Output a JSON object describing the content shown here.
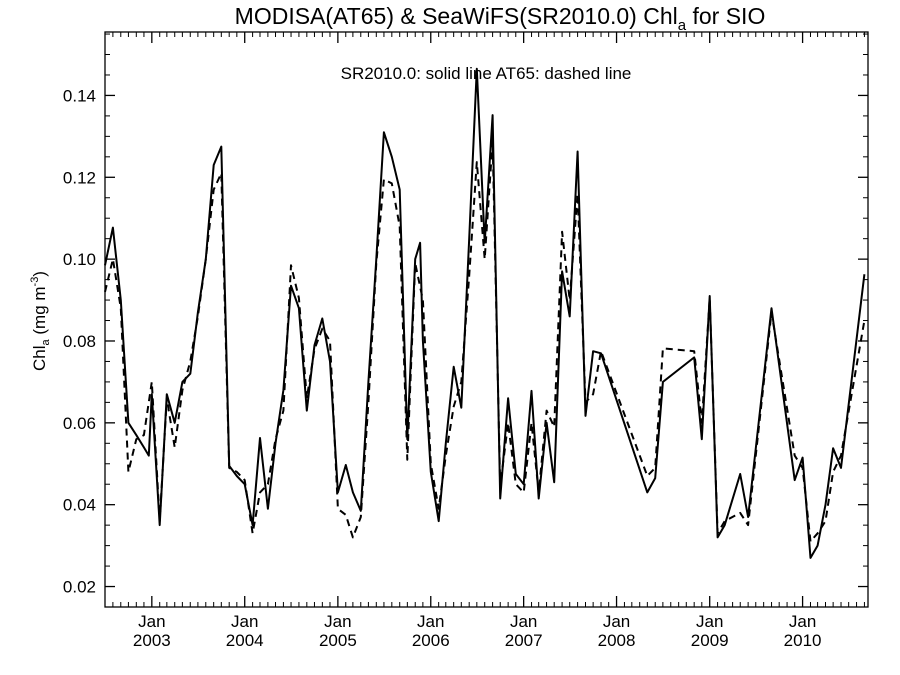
{
  "chart_data": {
    "type": "line",
    "title": {
      "main": "MODISA(AT65) & SeaWiFS(SR2010.0)  Chl",
      "subscript": "a",
      "suffix": " for SIO"
    },
    "annotation": "SR2010.0: solid line   AT65: dashed line",
    "ylabel": {
      "main": "Chl",
      "subscript": "a",
      "unit": " (mg m",
      "superscript": "-3",
      "close": ")"
    },
    "x_axis": {
      "type": "date",
      "range": [
        "2002-07-01",
        "2010-09-15"
      ],
      "tick_labels": [
        {
          "date": "2003-01-01",
          "month": "Jan",
          "year": "2003"
        },
        {
          "date": "2004-01-01",
          "month": "Jan",
          "year": "2004"
        },
        {
          "date": "2005-01-01",
          "month": "Jan",
          "year": "2005"
        },
        {
          "date": "2006-01-01",
          "month": "Jan",
          "year": "2006"
        },
        {
          "date": "2007-01-01",
          "month": "Jan",
          "year": "2007"
        },
        {
          "date": "2008-01-01",
          "month": "Jan",
          "year": "2008"
        },
        {
          "date": "2009-01-01",
          "month": "Jan",
          "year": "2009"
        },
        {
          "date": "2010-01-01",
          "month": "Jan",
          "year": "2010"
        }
      ]
    },
    "y_axis": {
      "range": [
        0.015,
        0.1555
      ],
      "tick_labels": [
        "0.02",
        "0.04",
        "0.06",
        "0.08",
        "0.10",
        "0.12",
        "0.14"
      ],
      "tick_values": [
        0.02,
        0.04,
        0.06,
        0.08,
        0.1,
        0.12,
        0.14
      ]
    },
    "series": [
      {
        "name": "SR2010.0",
        "style": "solid",
        "color": "#000000",
        "points": [
          [
            "2002-07-01",
            0.0985
          ],
          [
            "2002-08-01",
            0.1077
          ],
          [
            "2002-09-01",
            0.09
          ],
          [
            "2002-10-01",
            0.06
          ],
          [
            "2002-11-01",
            0.057
          ],
          [
            "2002-12-01",
            0.054
          ],
          [
            "2002-12-20",
            0.052
          ],
          [
            "2003-01-01",
            0.067
          ],
          [
            "2003-02-01",
            0.035
          ],
          [
            "2003-03-01",
            0.067
          ],
          [
            "2003-04-01",
            0.06
          ],
          [
            "2003-05-01",
            0.07
          ],
          [
            "2003-06-01",
            0.072
          ],
          [
            "2003-07-01",
            0.087
          ],
          [
            "2003-08-01",
            0.1
          ],
          [
            "2003-09-01",
            0.123
          ],
          [
            "2003-10-01",
            0.1275
          ],
          [
            "2003-11-01",
            0.0495
          ],
          [
            "2003-12-01",
            0.047
          ],
          [
            "2004-01-01",
            0.045
          ],
          [
            "2004-02-01",
            0.035
          ],
          [
            "2004-03-01",
            0.0563
          ],
          [
            "2004-04-01",
            0.039
          ],
          [
            "2004-05-01",
            0.055
          ],
          [
            "2004-06-01",
            0.068
          ],
          [
            "2004-07-01",
            0.0935
          ],
          [
            "2004-08-01",
            0.088
          ],
          [
            "2004-09-01",
            0.063
          ],
          [
            "2004-10-01",
            0.079
          ],
          [
            "2004-11-01",
            0.0855
          ],
          [
            "2004-12-01",
            0.075
          ],
          [
            "2005-01-01",
            0.043
          ],
          [
            "2005-02-01",
            0.0497
          ],
          [
            "2005-03-01",
            0.043
          ],
          [
            "2005-04-01",
            0.0385
          ],
          [
            "2005-05-01",
            0.07
          ],
          [
            "2005-06-01",
            0.1
          ],
          [
            "2005-07-01",
            0.131
          ],
          [
            "2005-08-01",
            0.125
          ],
          [
            "2005-09-01",
            0.117
          ],
          [
            "2005-10-01",
            0.056
          ],
          [
            "2005-11-01",
            0.1
          ],
          [
            "2005-11-20",
            0.104
          ],
          [
            "2005-12-01",
            0.08
          ],
          [
            "2006-01-01",
            0.048
          ],
          [
            "2006-02-01",
            0.036
          ],
          [
            "2006-03-01",
            0.055
          ],
          [
            "2006-04-01",
            0.0737
          ],
          [
            "2006-05-01",
            0.0637
          ],
          [
            "2006-06-01",
            0.105
          ],
          [
            "2006-07-01",
            0.1465
          ],
          [
            "2006-08-01",
            0.104
          ],
          [
            "2006-09-01",
            0.1352
          ],
          [
            "2006-10-01",
            0.0415
          ],
          [
            "2006-11-01",
            0.066
          ],
          [
            "2006-12-01",
            0.0475
          ],
          [
            "2007-01-01",
            0.045
          ],
          [
            "2007-02-01",
            0.0678
          ],
          [
            "2007-03-01",
            0.0415
          ],
          [
            "2007-04-01",
            0.06
          ],
          [
            "2007-05-01",
            0.0455
          ],
          [
            "2007-06-01",
            0.097
          ],
          [
            "2007-07-01",
            0.086
          ],
          [
            "2007-08-01",
            0.1263
          ],
          [
            "2007-09-01",
            0.0617
          ],
          [
            "2007-10-01",
            0.0775
          ],
          [
            "2007-11-01",
            0.077
          ],
          [
            "2008-05-01",
            0.043
          ],
          [
            "2008-06-01",
            0.0465
          ],
          [
            "2008-07-01",
            0.07
          ],
          [
            "2008-11-01",
            0.076
          ],
          [
            "2008-12-01",
            0.056
          ],
          [
            "2009-01-01",
            0.091
          ],
          [
            "2009-02-01",
            0.032
          ],
          [
            "2009-03-01",
            0.035
          ],
          [
            "2009-05-01",
            0.0475
          ],
          [
            "2009-06-01",
            0.037
          ],
          [
            "2009-09-01",
            0.088
          ],
          [
            "2009-12-01",
            0.046
          ],
          [
            "2010-01-01",
            0.0515
          ],
          [
            "2010-02-01",
            0.027
          ],
          [
            "2010-03-01",
            0.03
          ],
          [
            "2010-04-01",
            0.04
          ],
          [
            "2010-05-01",
            0.0538
          ],
          [
            "2010-06-01",
            0.049
          ],
          [
            "2010-09-01",
            0.0963
          ]
        ]
      },
      {
        "name": "AT65",
        "style": "dashed",
        "color": "#000000",
        "points": [
          [
            "2002-07-01",
            0.092
          ],
          [
            "2002-08-01",
            0.1
          ],
          [
            "2002-09-01",
            0.088
          ],
          [
            "2002-10-01",
            0.048
          ],
          [
            "2002-11-01",
            0.056
          ],
          [
            "2002-12-01",
            0.057
          ],
          [
            "2003-01-01",
            0.07
          ],
          [
            "2003-02-01",
            0.036
          ],
          [
            "2003-03-01",
            0.066
          ],
          [
            "2003-04-01",
            0.054
          ],
          [
            "2003-05-01",
            0.068
          ],
          [
            "2003-06-01",
            0.075
          ],
          [
            "2003-07-01",
            0.086
          ],
          [
            "2003-08-01",
            0.1
          ],
          [
            "2003-09-01",
            0.117
          ],
          [
            "2003-10-01",
            0.121
          ],
          [
            "2003-11-01",
            0.049
          ],
          [
            "2003-12-01",
            0.048
          ],
          [
            "2004-01-01",
            0.046
          ],
          [
            "2004-02-01",
            0.033
          ],
          [
            "2004-03-01",
            0.043
          ],
          [
            "2004-04-01",
            0.045
          ],
          [
            "2004-05-01",
            0.056
          ],
          [
            "2004-06-01",
            0.063
          ],
          [
            "2004-07-01",
            0.0985
          ],
          [
            "2004-08-01",
            0.0905
          ],
          [
            "2004-09-01",
            0.066
          ],
          [
            "2004-10-01",
            0.078
          ],
          [
            "2004-11-01",
            0.083
          ],
          [
            "2004-12-01",
            0.08
          ],
          [
            "2005-01-01",
            0.039
          ],
          [
            "2005-02-01",
            0.0375
          ],
          [
            "2005-03-01",
            0.032
          ],
          [
            "2005-04-01",
            0.037
          ],
          [
            "2005-05-01",
            0.065
          ],
          [
            "2005-06-01",
            0.099
          ],
          [
            "2005-07-01",
            0.1195
          ],
          [
            "2005-08-01",
            0.1185
          ],
          [
            "2005-09-01",
            0.108
          ],
          [
            "2005-10-01",
            0.051
          ],
          [
            "2005-11-01",
            0.099
          ],
          [
            "2005-12-01",
            0.09
          ],
          [
            "2006-01-01",
            0.05
          ],
          [
            "2006-02-01",
            0.039
          ],
          [
            "2006-03-01",
            0.052
          ],
          [
            "2006-04-01",
            0.064
          ],
          [
            "2006-05-01",
            0.07
          ],
          [
            "2006-06-01",
            0.096
          ],
          [
            "2006-07-01",
            0.1237
          ],
          [
            "2006-08-01",
            0.1
          ],
          [
            "2006-09-01",
            0.129
          ],
          [
            "2006-10-01",
            0.0445
          ],
          [
            "2006-11-01",
            0.06
          ],
          [
            "2006-12-01",
            0.045
          ],
          [
            "2007-01-01",
            0.043
          ],
          [
            "2007-02-01",
            0.06
          ],
          [
            "2007-03-01",
            0.043
          ],
          [
            "2007-04-01",
            0.063
          ],
          [
            "2007-05-01",
            0.059
          ],
          [
            "2007-06-01",
            0.1067
          ],
          [
            "2007-07-01",
            0.09
          ],
          [
            "2007-08-01",
            0.116
          ],
          [
            "2007-09-01",
            0.065
          ],
          [
            "2007-10-01",
            0.067
          ],
          [
            "2007-11-01",
            0.0775
          ],
          [
            "2008-05-01",
            0.047
          ],
          [
            "2008-06-01",
            0.049
          ],
          [
            "2008-07-01",
            0.0782
          ],
          [
            "2008-11-01",
            0.0775
          ],
          [
            "2008-12-01",
            0.06
          ],
          [
            "2009-01-01",
            0.0905
          ],
          [
            "2009-02-01",
            0.033
          ],
          [
            "2009-03-01",
            0.036
          ],
          [
            "2009-05-01",
            0.038
          ],
          [
            "2009-06-01",
            0.035
          ],
          [
            "2009-09-01",
            0.087
          ],
          [
            "2009-12-01",
            0.052
          ],
          [
            "2010-01-01",
            0.049
          ],
          [
            "2010-02-01",
            0.031
          ],
          [
            "2010-03-01",
            0.033
          ],
          [
            "2010-04-01",
            0.036
          ],
          [
            "2010-05-01",
            0.048
          ],
          [
            "2010-06-01",
            0.052
          ],
          [
            "2010-09-01",
            0.085
          ]
        ]
      }
    ],
    "grid": false,
    "legend": "none"
  }
}
